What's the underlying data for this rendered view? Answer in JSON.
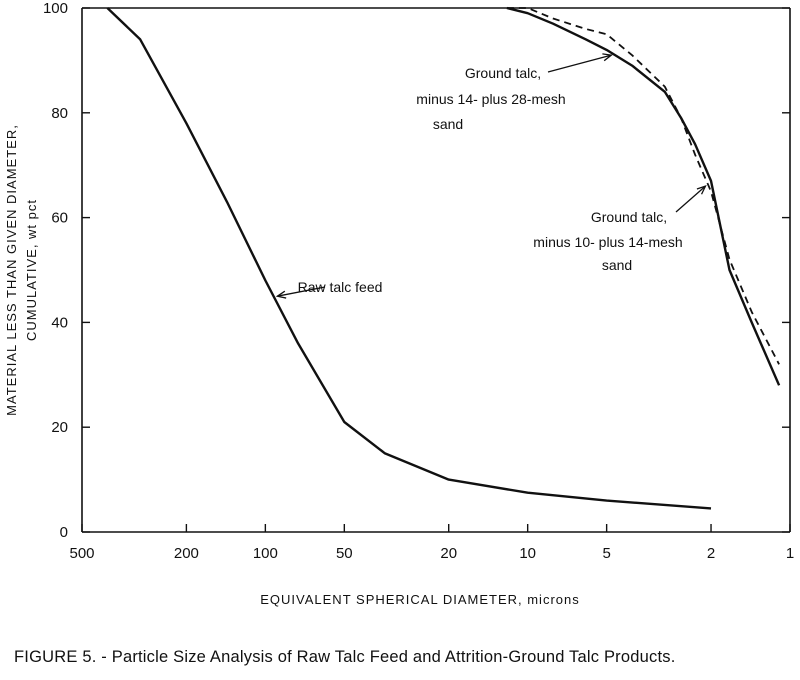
{
  "caption": "FIGURE 5. - Particle Size Analysis of Raw Talc Feed and Attrition-Ground Talc Products.",
  "chart_data": {
    "type": "line",
    "title": "",
    "xlabel": "EQUIVALENT SPHERICAL DIAMETER, microns",
    "ylabel_line1": "MATERIAL LESS THAN GIVEN DIAMETER,",
    "ylabel_line2": "CUMULATIVE, wt pct",
    "x_scale": "log-reversed",
    "xlim": [
      500,
      1
    ],
    "ylim": [
      0,
      100
    ],
    "x_ticks": [
      500,
      200,
      100,
      50,
      20,
      10,
      5,
      2,
      1
    ],
    "x_tick_labels": [
      "500",
      "200",
      "100",
      "50",
      "20",
      "10",
      "5",
      "2",
      "1"
    ],
    "y_ticks": [
      0,
      20,
      40,
      60,
      80,
      100
    ],
    "y_tick_labels": [
      "0",
      "20",
      "40",
      "60",
      "80",
      "100"
    ],
    "grid": false,
    "series": [
      {
        "style": "solid",
        "x": [
          400,
          300,
          200,
          140,
          100,
          75,
          50,
          35,
          20,
          10,
          5,
          2
        ],
        "y": [
          100,
          94,
          78,
          63,
          48,
          36,
          21,
          15,
          10,
          7.5,
          6,
          4.5
        ]
      },
      {
        "style": "solid",
        "x": [
          12,
          10,
          8,
          6,
          5,
          4,
          3,
          2.6,
          2.3,
          2,
          1.7,
          1.4,
          1.1
        ],
        "y": [
          100,
          99,
          97,
          94,
          92,
          89,
          84,
          79,
          74,
          67,
          50,
          40,
          28
        ]
      },
      {
        "style": "dashed",
        "x": [
          12,
          10,
          8,
          6,
          5,
          4,
          3,
          2.6,
          2.3,
          2,
          1.7,
          1.4,
          1.1
        ],
        "y": [
          100,
          100,
          98,
          96,
          95,
          91,
          85,
          79,
          72,
          65,
          52,
          42,
          32
        ]
      }
    ],
    "annotations": [
      {
        "name": "raw-talc-feed",
        "lines": [
          "Raw talc feed"
        ],
        "point": [
          90,
          45
        ]
      },
      {
        "name": "ground-talc-28",
        "lines": [
          "Ground talc,",
          "minus 14- plus 28-mesh",
          "sand"
        ],
        "point": [
          4.8,
          91
        ]
      },
      {
        "name": "ground-talc-14",
        "lines": [
          "Ground talc,",
          "minus 10- plus 14-mesh",
          "sand"
        ],
        "point": [
          2.1,
          66
        ]
      }
    ]
  }
}
